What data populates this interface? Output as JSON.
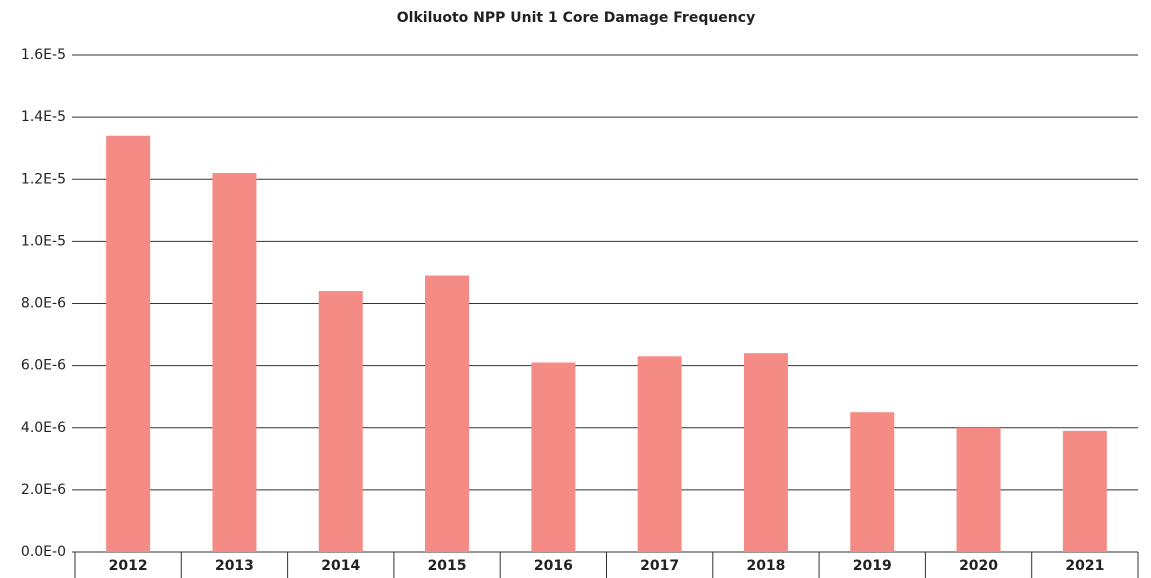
{
  "chart_data": {
    "type": "bar",
    "title": "Olkiluoto NPP Unit 1 Core Damage Frequency",
    "categories": [
      "2012",
      "2013",
      "2014",
      "2015",
      "2016",
      "2017",
      "2018",
      "2019",
      "2020",
      "2021"
    ],
    "values": [
      1.34e-05,
      1.22e-05,
      8.4e-06,
      8.9e-06,
      6.1e-06,
      6.3e-06,
      6.4e-06,
      4.5e-06,
      4e-06,
      3.9e-06
    ],
    "color": "#f48b84",
    "ylim": [
      0,
      1.6e-05
    ],
    "yticks": [
      {
        "value": 0,
        "label": "0.0E-0"
      },
      {
        "value": 2e-06,
        "label": "2.0E-6"
      },
      {
        "value": 4e-06,
        "label": "4.0E-6"
      },
      {
        "value": 6e-06,
        "label": "6.0E-6"
      },
      {
        "value": 8e-06,
        "label": "8.0E-6"
      },
      {
        "value": 1e-05,
        "label": "1.0E-5"
      },
      {
        "value": 1.2e-05,
        "label": "1.2E-5"
      },
      {
        "value": 1.4e-05,
        "label": "1.4E-5"
      },
      {
        "value": 1.6e-05,
        "label": "1.6E-5"
      }
    ],
    "grid": true
  }
}
